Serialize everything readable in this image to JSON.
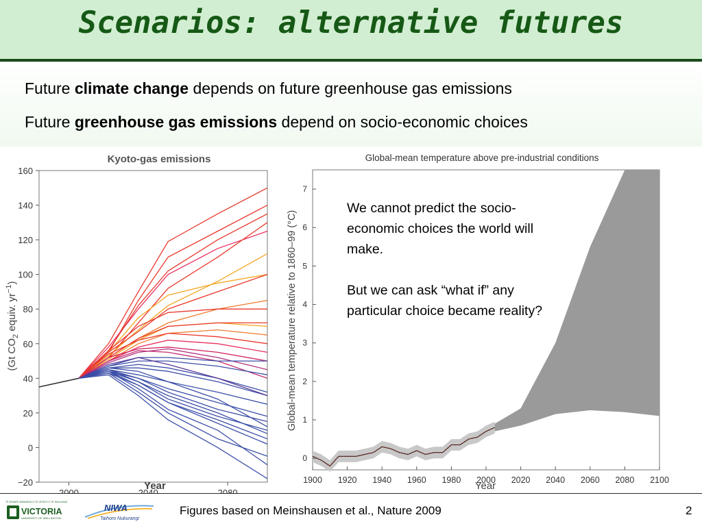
{
  "slide": {
    "title": "Scenarios: alternative futures",
    "bullets": [
      {
        "pre": "Future ",
        "bold": "climate change",
        "post": " depends on future greenhouse gas emissions"
      },
      {
        "pre": "Future ",
        "bold": "greenhouse gas emissions",
        "post": " depend on socio-economic choices"
      }
    ],
    "callout": {
      "para1": "We cannot predict the socio-economic choices the world will make.",
      "para2": "But we can ask “what if” any particular choice became reality?"
    },
    "footer": {
      "caption": "Figures based on Meinshausen et al., Nature 2009",
      "page_number": "2",
      "logo_vuw_name": "VICTORIA",
      "logo_vuw_sub": "UNIVERSITY OF WELLINGTON",
      "logo_vuw_motto": "TE WHARE WANANGA O TE UPOKO O TE IKA A MAUI",
      "logo_niwa_name": "NIWA",
      "logo_niwa_sub": "Taihoro Nukurangi"
    }
  },
  "chart_data": [
    {
      "type": "line",
      "title": "Kyoto-gas emissions",
      "xlabel": "Year",
      "ylabel_main": "(Gt CO",
      "ylabel_sub": "2",
      "ylabel_rest": " equiv. yr",
      "ylabel_sup": "−1",
      "ylabel_close": ")",
      "x_ticks": [
        2000,
        2040,
        2080
      ],
      "y_ticks": [
        160,
        140,
        120,
        100,
        80,
        60,
        40,
        20,
        0,
        -20
      ],
      "xlim": [
        1985,
        2100
      ],
      "ylim": [
        -20,
        160
      ],
      "grid": false,
      "historical": {
        "x": [
          1985,
          2005
        ],
        "y": [
          35,
          40
        ]
      },
      "scenarios": {
        "x": [
          2005,
          2020,
          2035,
          2050,
          2075,
          2100
        ],
        "series": [
          {
            "color": "#e8382b",
            "values": [
              40,
              55,
              85,
              110,
              125,
              140
            ]
          },
          {
            "color": "#e8382b",
            "values": [
              40,
              60,
              90,
              119,
              135,
              150
            ]
          },
          {
            "color": "#e83060",
            "values": [
              40,
              58,
              80,
              100,
              115,
              125
            ]
          },
          {
            "color": "#e8382b",
            "values": [
              40,
              52,
              72,
              92,
              110,
              130
            ]
          },
          {
            "color": "#e8382b",
            "values": [
              40,
              56,
              82,
              102,
              120,
              135
            ]
          },
          {
            "color": "#f5a623",
            "values": [
              40,
              53,
              68,
              82,
              96,
              112
            ]
          },
          {
            "color": "#f5a623",
            "values": [
              40,
              55,
              75,
              88,
              95,
              100
            ]
          },
          {
            "color": "#ee7a2a",
            "values": [
              40,
              52,
              63,
              72,
              80,
              85
            ]
          },
          {
            "color": "#f5a623",
            "values": [
              40,
              51,
              62,
              70,
              72,
              70
            ]
          },
          {
            "color": "#ee7a2a",
            "values": [
              40,
              50,
              60,
              66,
              68,
              65
            ]
          },
          {
            "color": "#e8382b",
            "values": [
              40,
              56,
              70,
              78,
              80,
              80
            ]
          },
          {
            "color": "#e8382b",
            "values": [
              40,
              52,
              63,
              70,
              72,
              72
            ]
          },
          {
            "color": "#e8382b",
            "values": [
              40,
              55,
              67,
              80,
              90,
              100
            ]
          },
          {
            "color": "#e83060",
            "values": [
              40,
              50,
              58,
              62,
              60,
              55
            ]
          },
          {
            "color": "#d02060",
            "values": [
              40,
              52,
              57,
              58,
              55,
              50
            ]
          },
          {
            "color": "#b03080",
            "values": [
              40,
              49,
              55,
              57,
              52,
              45
            ]
          },
          {
            "color": "#c02a70",
            "values": [
              40,
              50,
              56,
              55,
              50,
              40
            ]
          },
          {
            "color": "#e8382b",
            "values": [
              40,
              54,
              62,
              66,
              64,
              60
            ]
          },
          {
            "color": "#3b4ea8",
            "values": [
              40,
              47,
              50,
              50,
              47,
              42
            ]
          },
          {
            "color": "#3b4ea8",
            "values": [
              40,
              46,
              46,
              44,
              38,
              30
            ]
          },
          {
            "color": "#3b4ea8",
            "values": [
              40,
              45,
              42,
              38,
              32,
              25
            ]
          },
          {
            "color": "#3b4ea8",
            "values": [
              40,
              44,
              40,
              34,
              26,
              18
            ]
          },
          {
            "color": "#3b4ea8",
            "values": [
              40,
              46,
              44,
              38,
              28,
              12
            ]
          },
          {
            "color": "#3b4ea8",
            "values": [
              40,
              45,
              38,
              30,
              20,
              8
            ]
          },
          {
            "color": "#3b4ea8",
            "values": [
              40,
              44,
              36,
              26,
              14,
              2
            ]
          },
          {
            "color": "#3b4ea8",
            "values": [
              40,
              43,
              32,
              20,
              5,
              -5
            ]
          },
          {
            "color": "#3b4ea8",
            "values": [
              40,
              42,
              30,
              16,
              0,
              -18
            ]
          },
          {
            "color": "#3b4ea8",
            "values": [
              40,
              44,
              34,
              22,
              10,
              -10
            ]
          },
          {
            "color": "#3b4ea8",
            "values": [
              40,
              46,
              48,
              46,
              40,
              32
            ]
          },
          {
            "color": "#3b4ea8",
            "values": [
              40,
              47,
              52,
              52,
              50,
              50
            ]
          },
          {
            "color": "#3b4ea8",
            "values": [
              40,
              45,
              40,
              32,
              22,
              15
            ]
          },
          {
            "color": "#3b4ea8",
            "values": [
              40,
              44,
              38,
              28,
              18,
              10
            ]
          },
          {
            "color": "#5a3a98",
            "values": [
              40,
              48,
              52,
              48,
              40,
              30
            ]
          },
          {
            "color": "#3b4ea8",
            "values": [
              40,
              43,
              36,
              26,
              16,
              5
            ]
          }
        ]
      }
    },
    {
      "type": "area",
      "title": "Global-mean temperature above pre-industrial conditions",
      "xlabel": "Year",
      "ylabel": "Global-mean temperature relative to 1860–99 (°C)",
      "x_ticks": [
        1900,
        1920,
        1940,
        1960,
        1980,
        2000,
        2020,
        2040,
        2060,
        2080,
        2100
      ],
      "y_ticks": [
        0,
        1,
        2,
        3,
        4,
        5,
        6,
        7
      ],
      "xlim": [
        1900,
        2100
      ],
      "ylim": [
        -0.3,
        7.5
      ],
      "grid": false,
      "projection_band": {
        "x": [
          2005,
          2020,
          2040,
          2060,
          2080,
          2100
        ],
        "upper": [
          0.9,
          1.3,
          3.0,
          5.5,
          7.5,
          7.5
        ],
        "lower": [
          0.7,
          0.85,
          1.15,
          1.25,
          1.2,
          1.1
        ]
      },
      "observations": {
        "x": [
          1900,
          1905,
          1910,
          1915,
          1920,
          1925,
          1930,
          1935,
          1940,
          1945,
          1950,
          1955,
          1960,
          1965,
          1970,
          1975,
          1980,
          1985,
          1990,
          1995,
          2000,
          2005
        ],
        "y": [
          0.05,
          -0.05,
          -0.2,
          0.05,
          0.05,
          0.05,
          0.1,
          0.15,
          0.3,
          0.25,
          0.15,
          0.1,
          0.2,
          0.1,
          0.15,
          0.15,
          0.35,
          0.35,
          0.5,
          0.55,
          0.7,
          0.8
        ]
      }
    }
  ]
}
